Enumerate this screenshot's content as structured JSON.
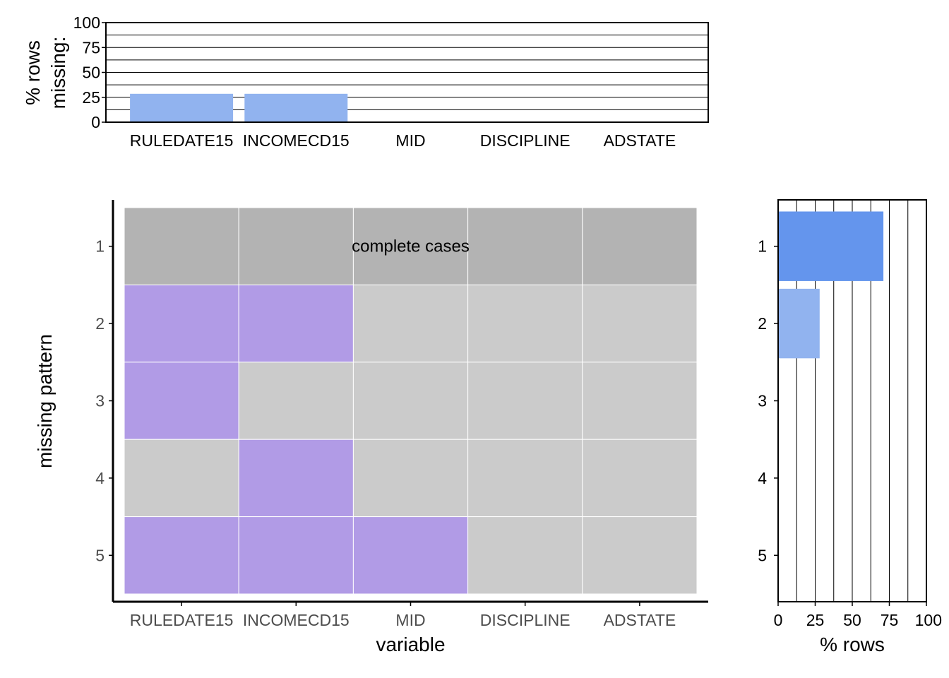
{
  "chart_data": [
    {
      "type": "bar",
      "panel": "top",
      "categories": [
        "RULEDATE15",
        "INCOMECD15",
        "MID",
        "DISCIPLINE",
        "ADSTATE"
      ],
      "values": [
        28.5,
        28.5,
        0,
        0,
        0
      ],
      "ylabel": "% rows\nmissing:",
      "ylabel_lines": [
        "% rows",
        "missing:"
      ],
      "ylim": [
        0,
        100
      ],
      "yticks": [
        "0",
        "25",
        "50",
        "75",
        "100"
      ],
      "grid": true,
      "bar_color": "#91b3ef"
    },
    {
      "type": "heatmap",
      "panel": "main",
      "xlabel": "variable",
      "ylabel": "missing pattern",
      "x": [
        "RULEDATE15",
        "INCOMECD15",
        "MID",
        "DISCIPLINE",
        "ADSTATE"
      ],
      "y": [
        "1",
        "2",
        "3",
        "4",
        "5"
      ],
      "missing": [
        [
          0,
          0,
          0,
          0,
          0
        ],
        [
          1,
          1,
          0,
          0,
          0
        ],
        [
          1,
          0,
          0,
          0,
          0
        ],
        [
          0,
          1,
          0,
          0,
          0
        ],
        [
          1,
          1,
          1,
          0,
          0
        ]
      ],
      "annotation": "complete cases",
      "colors": {
        "complete_row": "#b3b3b3",
        "missing": "#b19be6",
        "present": "#cbcbcb"
      }
    },
    {
      "type": "bar",
      "panel": "right",
      "orientation": "horizontal",
      "categories": [
        "1",
        "2",
        "3",
        "4",
        "5"
      ],
      "values": [
        71,
        28,
        0.3,
        0.2,
        0.1
      ],
      "xlabel": "% rows",
      "xlim": [
        0,
        100
      ],
      "xticks": [
        "0",
        "25",
        "50",
        "75",
        "100"
      ],
      "grid": true,
      "colors": [
        "#6495ed",
        "#91b3ef",
        "#91b3ef",
        "#91b3ef",
        "#91b3ef"
      ]
    }
  ]
}
